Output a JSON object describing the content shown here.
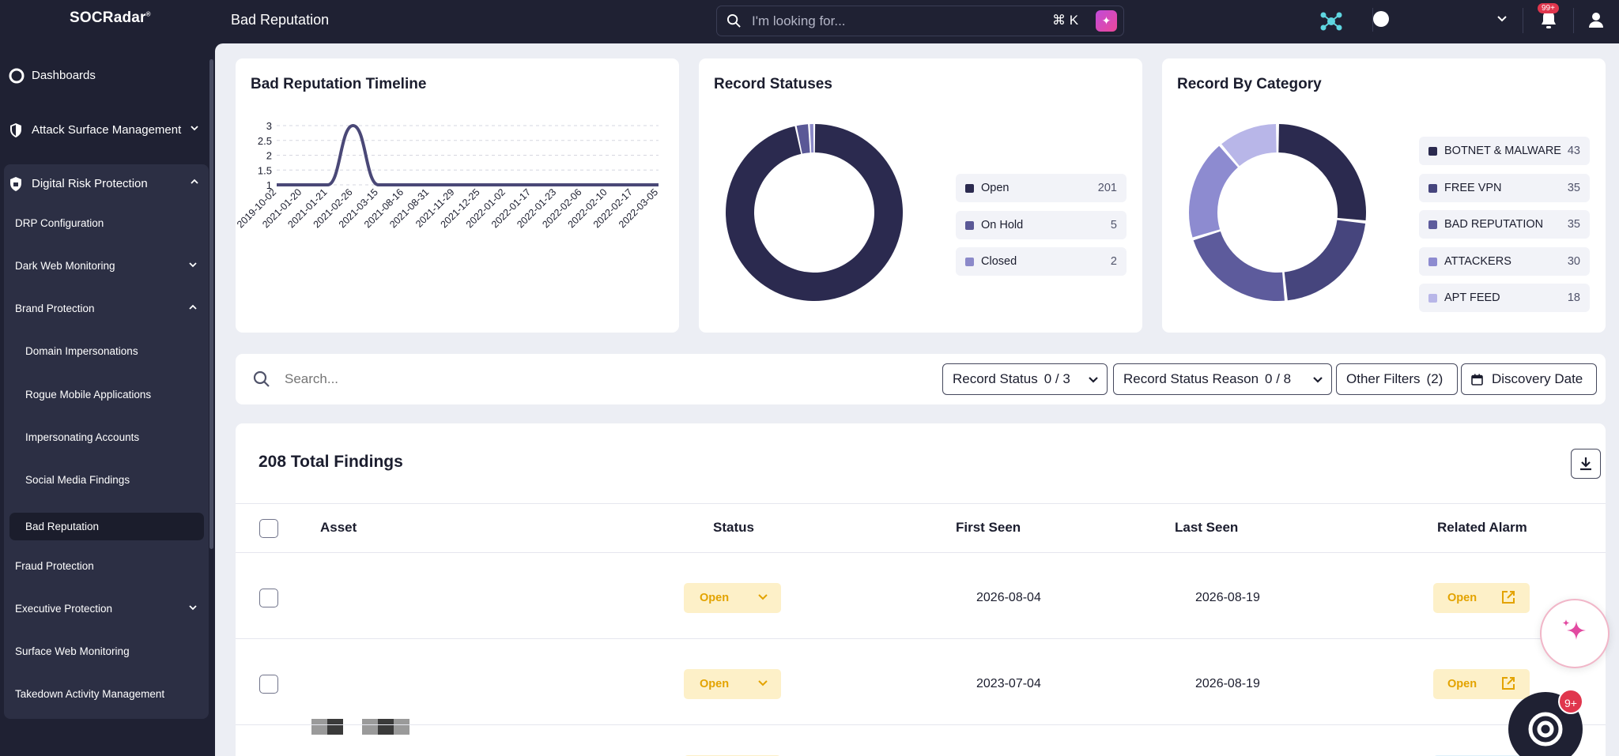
{
  "app": {
    "logo": "SOCRadar",
    "logo_mark": "®",
    "page_title": "Bad Reputation"
  },
  "topbar": {
    "search_placeholder": "I'm looking for...",
    "shortcut": "⌘  K",
    "notifications_badge": "99+"
  },
  "sidebar": {
    "top": [
      {
        "label": "Dashboards"
      },
      {
        "label": "Attack Surface Management"
      },
      {
        "label": "Digital Risk Protection"
      }
    ],
    "items": [
      {
        "label": "DRP Configuration"
      },
      {
        "label": "Dark Web Monitoring"
      },
      {
        "label": "Brand Protection"
      },
      {
        "label": "Domain Impersonations"
      },
      {
        "label": "Rogue Mobile Applications"
      },
      {
        "label": "Impersonating Accounts"
      },
      {
        "label": "Social Media Findings"
      },
      {
        "label": "Bad Reputation"
      },
      {
        "label": "Fraud Protection"
      },
      {
        "label": "Executive Protection"
      },
      {
        "label": "Surface Web Monitoring"
      },
      {
        "label": "Takedown Activity Management"
      }
    ]
  },
  "cards": {
    "timeline": {
      "title": "Bad Reputation Timeline"
    },
    "statuses": {
      "title": "Record Statuses",
      "legend": [
        {
          "label": "Open",
          "value": "201",
          "color": "#2b2a4f"
        },
        {
          "label": "On Hold",
          "value": "5",
          "color": "#5a5896"
        },
        {
          "label": "Closed",
          "value": "2",
          "color": "#8b89c9"
        }
      ]
    },
    "category": {
      "title": "Record By Category",
      "legend": [
        {
          "label": "BOTNET & MALWARE",
          "value": "43",
          "color": "#2b2a4f"
        },
        {
          "label": "FREE VPN",
          "value": "35",
          "color": "#46457d"
        },
        {
          "label": "BAD REPUTATION",
          "value": "35",
          "color": "#5d5b9c"
        },
        {
          "label": "ATTACKERS",
          "value": "30",
          "color": "#8d8bd0"
        },
        {
          "label": "APT FEED",
          "value": "18",
          "color": "#b8b6e8"
        }
      ]
    }
  },
  "chart_data": {
    "type": "line",
    "title": "Bad Reputation Timeline",
    "x": [
      "2019-10-02",
      "2021-01-20",
      "2021-01-21",
      "2021-02-26",
      "2021-03-15",
      "2021-08-16",
      "2021-08-31",
      "2021-11-29",
      "2021-12-25",
      "2022-01-02",
      "2022-01-17",
      "2022-01-23",
      "2022-02-06",
      "2022-02-10",
      "2022-02-17",
      "2022-03-05"
    ],
    "values": [
      1,
      1,
      1,
      3,
      1,
      1,
      1,
      1,
      1,
      1,
      1,
      1,
      1,
      1,
      1,
      1
    ],
    "y_ticks": [
      "1",
      "1.5",
      "2",
      "2.5",
      "3"
    ],
    "ylim": [
      1,
      3
    ],
    "grid": true,
    "line_color": "#4a4877"
  },
  "filters": {
    "search_placeholder": "Search...",
    "buttons": [
      {
        "label": "Record Status",
        "count": "0 / 3"
      },
      {
        "label": "Record Status Reason",
        "count": "0 / 8"
      },
      {
        "label": "Other Filters",
        "count": "(2)"
      },
      {
        "label": "Discovery Date",
        "count": ""
      }
    ]
  },
  "table": {
    "total": "208 Total Findings",
    "headers": {
      "asset": "Asset",
      "status": "Status",
      "first_seen": "First Seen",
      "last_seen": "Last Seen",
      "related_alarm": "Related Alarm"
    },
    "rows": [
      {
        "status": "Open",
        "first_seen": "2026-08-04",
        "last_seen": "2026-08-19",
        "alarm": "Open"
      },
      {
        "status": "Open",
        "first_seen": "2023-07-04",
        "last_seen": "2026-08-19",
        "alarm": "Open"
      }
    ]
  },
  "chat": {
    "badge": "9+"
  }
}
